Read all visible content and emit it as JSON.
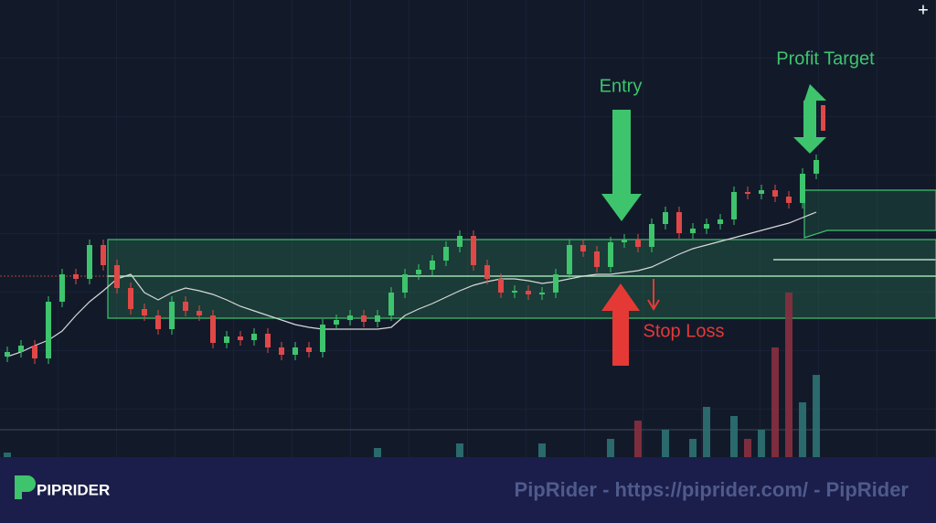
{
  "chart_data": {
    "type": "candlestick",
    "ylim": [
      0,
      500
    ],
    "volume_lim": [
      0,
      200
    ],
    "up_color": "#3ec46d",
    "down_color": "#e04848",
    "open": [
      110,
      115,
      122,
      108,
      170,
      200,
      195,
      232,
      210,
      185,
      162,
      155,
      140,
      170,
      160,
      155,
      125,
      132,
      128,
      135,
      120,
      112,
      120,
      115,
      145,
      150,
      155,
      148,
      155,
      180,
      200,
      205,
      215,
      230,
      242,
      210,
      195,
      180,
      182,
      178,
      180,
      200,
      232,
      225,
      208,
      235,
      238,
      230,
      255,
      268,
      245,
      250,
      255,
      260,
      290,
      288,
      292,
      285,
      278,
      310
    ],
    "high": [
      121,
      128,
      128,
      176,
      206,
      206,
      238,
      238,
      216,
      191,
      168,
      161,
      176,
      176,
      166,
      161,
      138,
      138,
      141,
      141,
      126,
      126,
      126,
      151,
      156,
      161,
      161,
      161,
      186,
      206,
      211,
      221,
      236,
      248,
      248,
      216,
      201,
      188,
      188,
      186,
      206,
      238,
      238,
      231,
      241,
      244,
      244,
      261,
      274,
      274,
      256,
      261,
      266,
      296,
      296,
      298,
      298,
      291,
      316,
      331
    ],
    "low": [
      104,
      109,
      102,
      102,
      164,
      189,
      189,
      204,
      179,
      156,
      149,
      134,
      134,
      154,
      149,
      119,
      119,
      122,
      122,
      114,
      106,
      106,
      109,
      109,
      139,
      144,
      142,
      142,
      149,
      174,
      194,
      199,
      209,
      224,
      204,
      189,
      174,
      174,
      172,
      172,
      174,
      194,
      219,
      202,
      202,
      229,
      224,
      224,
      249,
      239,
      239,
      244,
      249,
      254,
      282,
      282,
      279,
      272,
      272,
      304
    ],
    "close": [
      115,
      122,
      108,
      170,
      200,
      195,
      232,
      210,
      185,
      162,
      155,
      140,
      170,
      160,
      155,
      125,
      132,
      128,
      135,
      120,
      112,
      120,
      115,
      145,
      150,
      155,
      148,
      155,
      180,
      200,
      205,
      215,
      230,
      242,
      210,
      195,
      180,
      182,
      178,
      180,
      200,
      232,
      225,
      208,
      235,
      238,
      230,
      255,
      268,
      245,
      250,
      255,
      260,
      290,
      288,
      292,
      285,
      278,
      310,
      325
    ],
    "volume": [
      5,
      0,
      0,
      0,
      0,
      0,
      0,
      0,
      0,
      0,
      0,
      0,
      0,
      0,
      0,
      0,
      0,
      0,
      0,
      0,
      0,
      0,
      0,
      0,
      0,
      0,
      0,
      10,
      0,
      0,
      0,
      0,
      0,
      15,
      0,
      0,
      0,
      0,
      0,
      15,
      0,
      0,
      0,
      0,
      20,
      0,
      40,
      0,
      30,
      0,
      20,
      55,
      0,
      45,
      20,
      30,
      120,
      180,
      60,
      90
    ],
    "ma": [
      110,
      115,
      122,
      128,
      138,
      155,
      170,
      182,
      195,
      200,
      180,
      172,
      180,
      185,
      182,
      178,
      172,
      165,
      160,
      155,
      150,
      145,
      142,
      140,
      140,
      140,
      140,
      140,
      142,
      155,
      162,
      168,
      175,
      182,
      188,
      192,
      195,
      195,
      193,
      190,
      192,
      195,
      198,
      200,
      200,
      202,
      204,
      208,
      215,
      222,
      228,
      232,
      236,
      240,
      244,
      248,
      252,
      256,
      262,
      268
    ],
    "ma_color": "#d8d8d8",
    "zone": {
      "low": 152,
      "high": 238,
      "mid": 198,
      "color": "#3ec46d"
    },
    "annotations": {
      "entry": "Entry",
      "profit_target": "Profit Target",
      "stop_loss": "Stop Loss"
    }
  },
  "toolbar": {
    "crosshair": "+"
  },
  "footer": {
    "brand": "PIPRIDER",
    "watermark": "PipRider - https://piprider.com/ - PipRider"
  }
}
